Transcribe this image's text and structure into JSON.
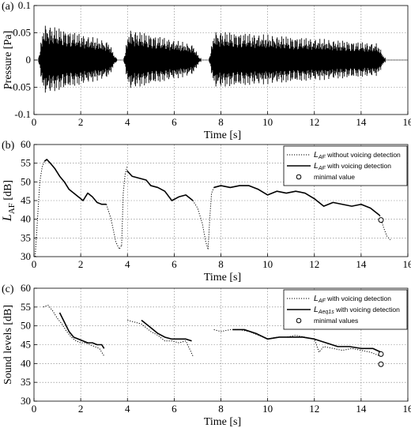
{
  "chart_data": [
    {
      "panel_label": "(a)",
      "type": "line",
      "xlabel": "Time [s]",
      "ylabel": "Pressure [Pa]",
      "xlim": [
        0,
        16
      ],
      "ylim": [
        -0.1,
        0.1
      ],
      "xticks": [
        "0",
        "2",
        "4",
        "6",
        "8",
        "10",
        "12",
        "14",
        "16"
      ],
      "yticks": [
        "0.1",
        "0.05",
        "0",
        "-0.05",
        "-0.1"
      ],
      "grid": true,
      "series": [
        {
          "style": "waveform",
          "segments": [
            {
              "start": 0.2,
              "end": 3.55,
              "peak_start": 0.07,
              "peak_end": 0.03
            },
            {
              "start": 3.85,
              "end": 7.15,
              "peak_start": 0.06,
              "peak_end": 0.025
            },
            {
              "start": 7.5,
              "end": 15.05,
              "peak_start": 0.055,
              "peak_end": 0.03
            }
          ]
        }
      ]
    },
    {
      "panel_label": "(b)",
      "type": "line",
      "xlabel": "Time [s]",
      "ylabel": "L_AF [dB]",
      "ylabel_main": "L",
      "ylabel_sub": "AF",
      "ylabel_unit": " [dB]",
      "xlim": [
        0,
        16
      ],
      "ylim": [
        30,
        60
      ],
      "xticks": [
        "0",
        "2",
        "4",
        "6",
        "8",
        "10",
        "12",
        "14",
        "16"
      ],
      "yticks": [
        "60",
        "55",
        "50",
        "45",
        "40",
        "35",
        "30"
      ],
      "grid": true,
      "legend_position": "top-right",
      "legend": [
        {
          "sym": "L",
          "sub": "AF",
          "text": " without voicing detection",
          "style": "dotted"
        },
        {
          "sym": "L",
          "sub": "AF",
          "text": " with voicing detection",
          "style": "solid"
        },
        {
          "sym": "",
          "sub": "",
          "text": "minimal value",
          "style": "circle"
        }
      ],
      "series": [
        {
          "style": "dotted",
          "x": [
            0.05,
            0.15,
            0.25,
            0.35,
            0.45,
            0.55
          ],
          "y": [
            30,
            40,
            50,
            54,
            55.5,
            56
          ]
        },
        {
          "style": "solid",
          "x": [
            0.45,
            0.55,
            0.7,
            0.9,
            1.1,
            1.3,
            1.5,
            1.7,
            1.9,
            2.1,
            2.3,
            2.5,
            2.7,
            2.9,
            3.1
          ],
          "y": [
            55.5,
            56,
            55,
            53.5,
            51.5,
            50,
            48,
            47,
            46,
            45,
            47,
            46,
            44.5,
            44,
            44
          ]
        },
        {
          "style": "dotted",
          "x": [
            3.1,
            3.3,
            3.5,
            3.65,
            3.75
          ],
          "y": [
            44,
            40,
            34,
            32,
            33
          ]
        },
        {
          "style": "dotted",
          "x": [
            3.75,
            3.82,
            3.9,
            3.98
          ],
          "y": [
            33,
            47,
            52,
            54
          ]
        },
        {
          "style": "solid",
          "x": [
            3.98,
            4.2,
            4.5,
            4.8,
            5.0,
            5.3,
            5.6,
            5.9,
            6.2,
            6.5,
            6.8
          ],
          "y": [
            53,
            51.5,
            51,
            50.5,
            49,
            48.5,
            47.5,
            45,
            46,
            46.5,
            45
          ]
        },
        {
          "style": "dotted",
          "x": [
            6.8,
            7.0,
            7.2,
            7.35,
            7.45
          ],
          "y": [
            45,
            43,
            39,
            34,
            32
          ]
        },
        {
          "style": "dotted",
          "x": [
            7.45,
            7.52,
            7.6,
            7.7
          ],
          "y": [
            32,
            40,
            47,
            48.5
          ]
        },
        {
          "style": "solid",
          "x": [
            7.7,
            8.0,
            8.4,
            8.8,
            9.2,
            9.6,
            10.0,
            10.4,
            10.8,
            11.2,
            11.6,
            12.0,
            12.4,
            12.8,
            13.2,
            13.6,
            14.0,
            14.4,
            14.8
          ],
          "y": [
            48.5,
            49,
            48.5,
            49,
            49,
            48,
            46.5,
            47.5,
            47,
            47.5,
            47,
            45.5,
            43.5,
            44.5,
            44,
            43.5,
            44,
            43,
            41
          ]
        },
        {
          "style": "dotted",
          "x": [
            14.8,
            14.95,
            15.1,
            15.25
          ],
          "y": [
            41,
            38,
            35.5,
            34.5
          ]
        }
      ],
      "minimal_points": [
        {
          "x": 14.85,
          "y": 39.8
        }
      ]
    },
    {
      "panel_label": "(c)",
      "type": "line",
      "xlabel": "Time [s]",
      "ylabel": "Sound levels [dB]",
      "xlim": [
        0,
        16
      ],
      "ylim": [
        30,
        60
      ],
      "xticks": [
        "0",
        "2",
        "4",
        "6",
        "8",
        "10",
        "12",
        "14",
        "16"
      ],
      "yticks": [
        "60",
        "55",
        "50",
        "45",
        "40",
        "35",
        "30"
      ],
      "grid": true,
      "legend_position": "top-right",
      "legend": [
        {
          "sym": "L",
          "sub": "AF",
          "text": " with voicing detection",
          "style": "dotted"
        },
        {
          "sym": "L",
          "sub": "Aeq1s",
          "text": " with voicing detection",
          "style": "solid"
        },
        {
          "sym": "",
          "sub": "",
          "text": "minimal values",
          "style": "circle"
        }
      ],
      "series": [
        {
          "style": "dotted",
          "x": [
            0.4,
            0.6,
            0.8,
            1.0,
            1.2,
            1.4,
            1.6,
            1.8,
            2.0,
            2.2,
            2.4,
            2.6,
            2.8,
            3.0
          ],
          "y": [
            55,
            55.5,
            54,
            52,
            50.5,
            48.5,
            47,
            46,
            45.5,
            45.5,
            45,
            44.5,
            44,
            42
          ]
        },
        {
          "style": "solid",
          "x": [
            1.1,
            1.3,
            1.5,
            1.7,
            1.9,
            2.1,
            2.3,
            2.5,
            2.7,
            2.9,
            3.0
          ],
          "y": [
            53.5,
            51,
            48.5,
            47,
            46.5,
            46,
            45.5,
            45.5,
            45,
            45,
            44
          ]
        },
        {
          "style": "dotted",
          "x": [
            4.0,
            4.3,
            4.6,
            5.0,
            5.3,
            5.6,
            5.9,
            6.2,
            6.5,
            6.8
          ],
          "y": [
            51.5,
            51,
            50.5,
            48.5,
            47.5,
            46,
            46,
            45.5,
            46,
            42
          ]
        },
        {
          "style": "solid",
          "x": [
            4.6,
            4.8,
            5.0,
            5.3,
            5.6,
            5.9,
            6.2,
            6.5,
            6.75
          ],
          "y": [
            51.5,
            50.5,
            49.5,
            48,
            47,
            46.5,
            46.5,
            46.5,
            46
          ]
        },
        {
          "style": "dotted",
          "x": [
            7.7,
            8.0,
            8.4,
            8.8,
            9.2,
            9.6,
            10.0,
            10.4,
            10.8,
            11.2,
            11.6,
            12.0,
            12.2,
            12.4,
            12.8,
            13.2,
            13.6,
            14.0,
            14.4,
            14.8
          ],
          "y": [
            49,
            48.5,
            49,
            49,
            48.5,
            47.5,
            46.5,
            47,
            47,
            47.5,
            47,
            46.5,
            43,
            44.5,
            44,
            43.5,
            44,
            43.5,
            43,
            42
          ]
        },
        {
          "style": "solid",
          "x": [
            8.5,
            9.0,
            9.5,
            10.0,
            10.5,
            11.0,
            11.5,
            12.0,
            12.5,
            13.0,
            13.5,
            14.0,
            14.5,
            14.85
          ],
          "y": [
            49,
            49,
            48,
            46.5,
            47,
            47,
            47,
            46.5,
            45.5,
            44.5,
            44.5,
            44,
            44,
            43
          ]
        }
      ],
      "minimal_points": [
        {
          "x": 14.85,
          "y": 42.5
        },
        {
          "x": 14.85,
          "y": 39.8
        }
      ]
    }
  ]
}
